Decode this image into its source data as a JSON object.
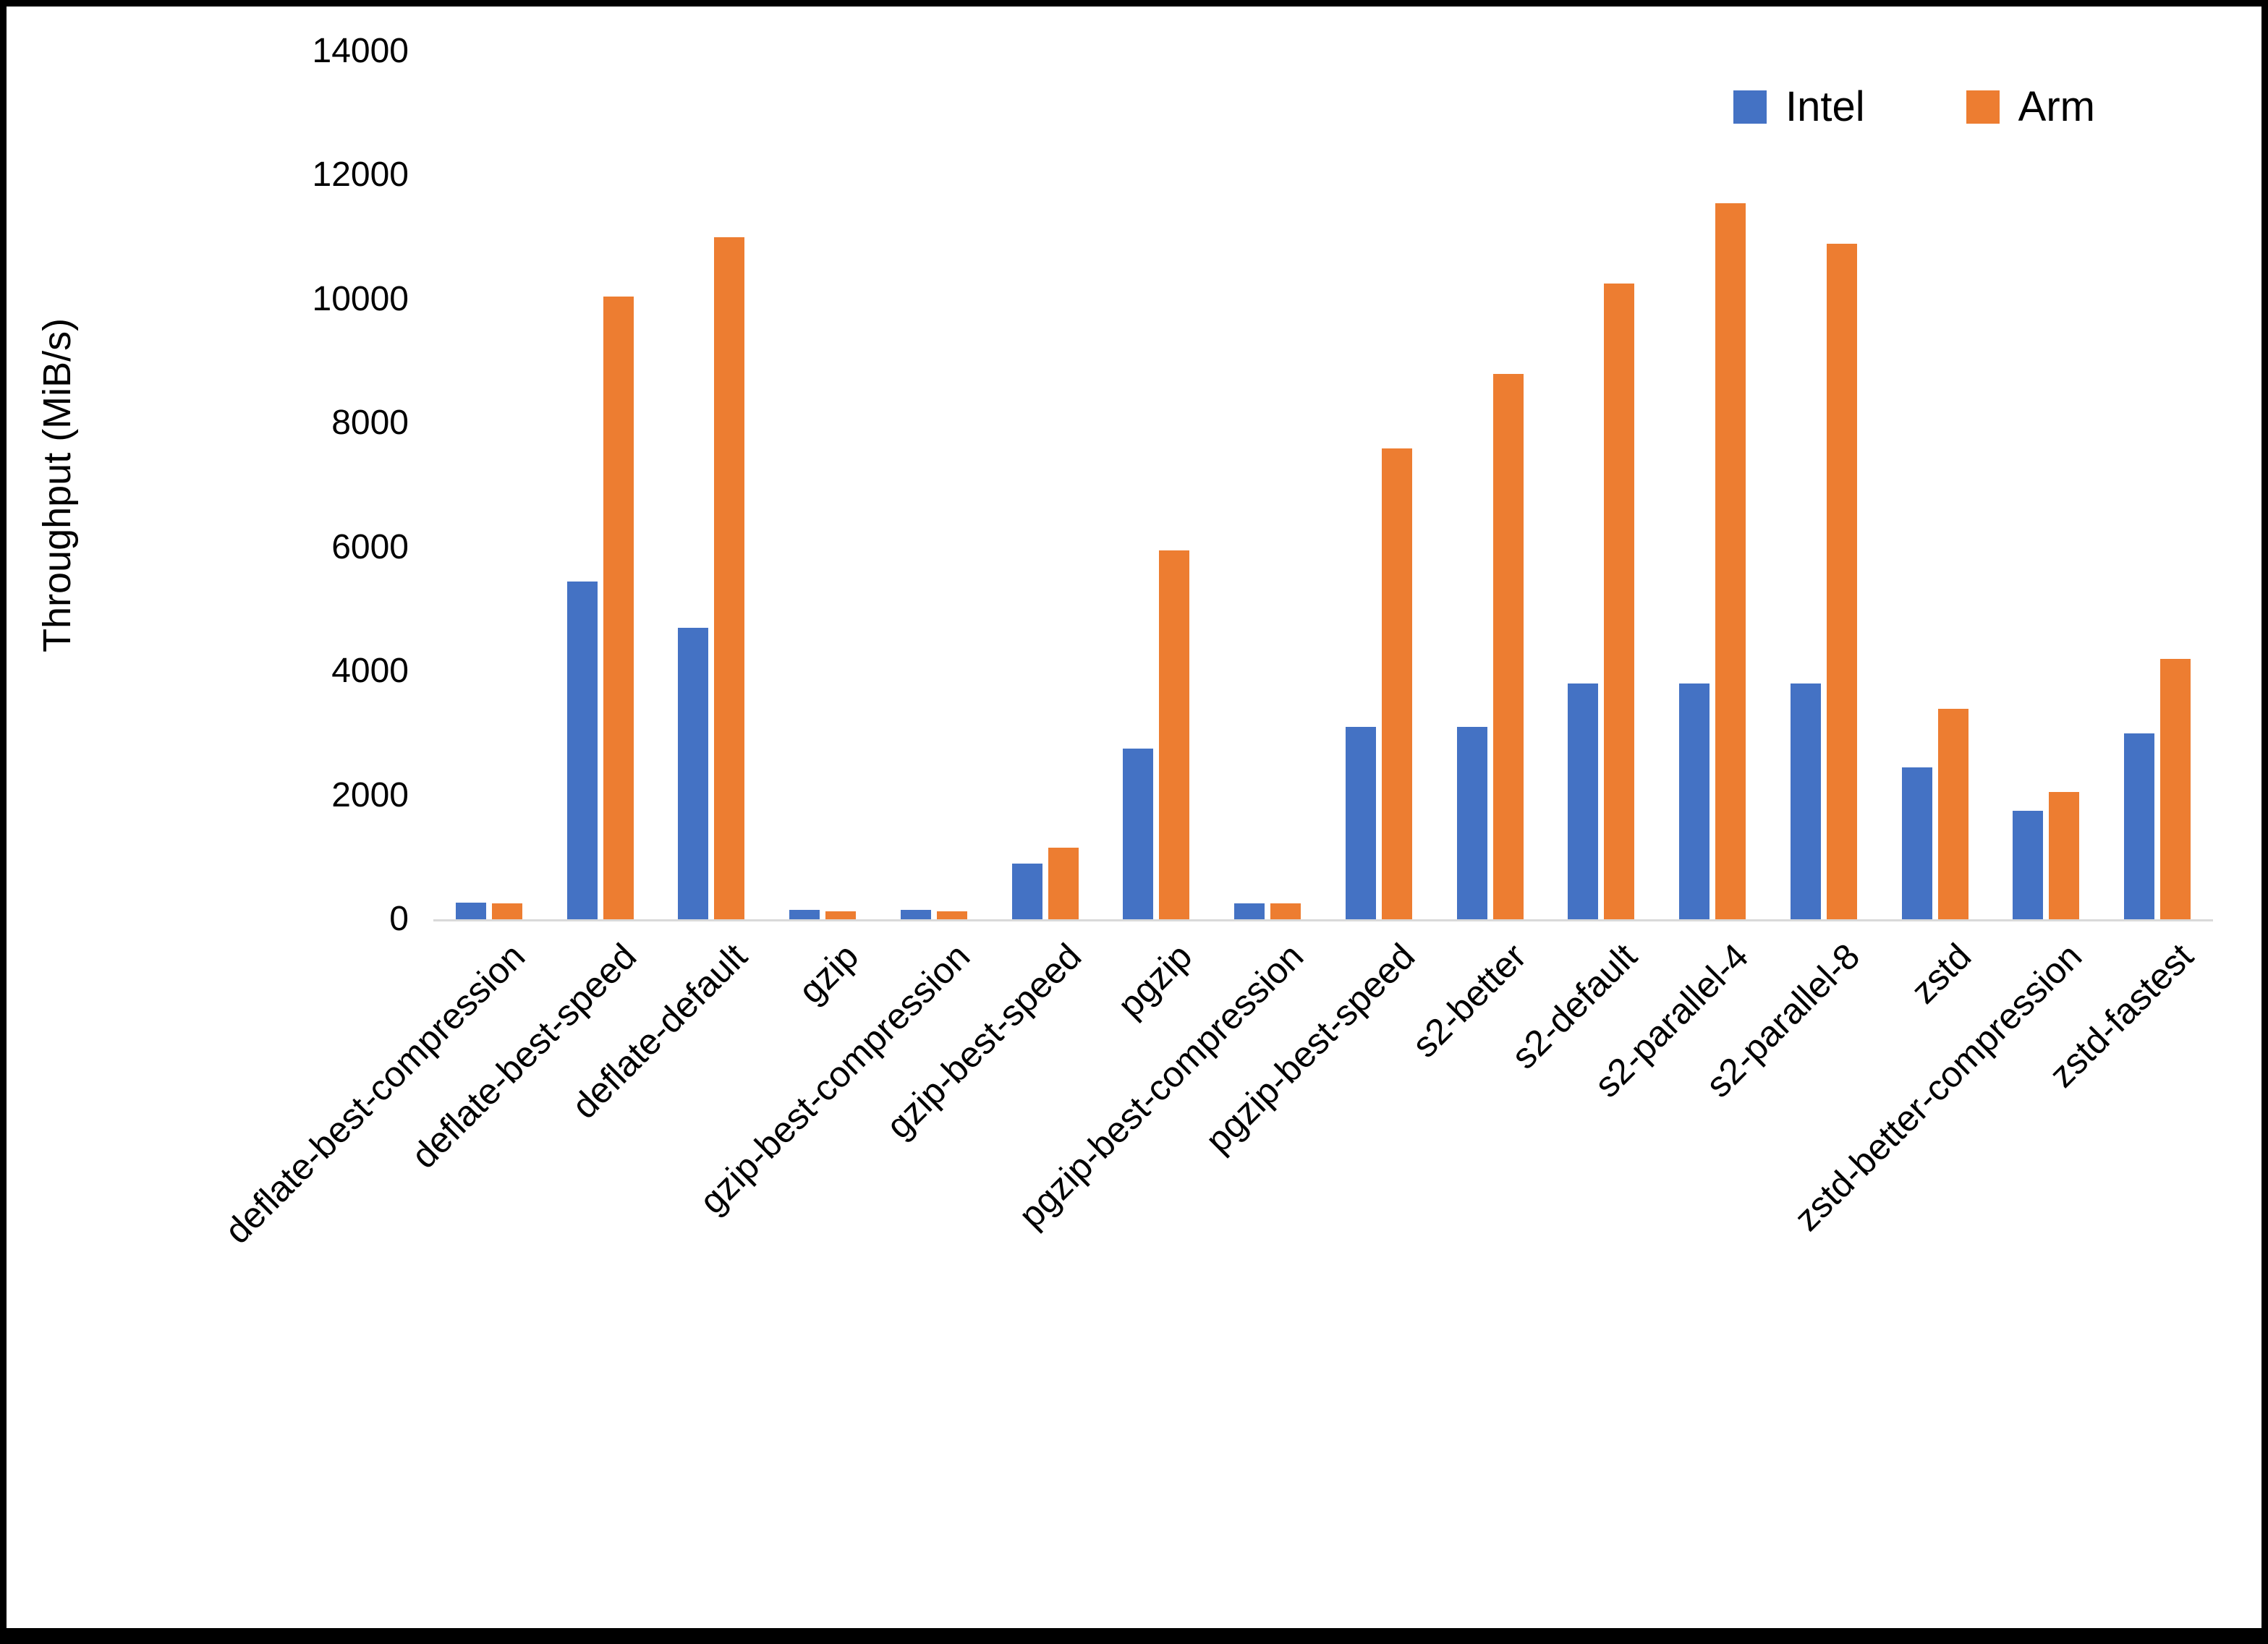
{
  "chart_data": {
    "type": "bar",
    "title": "",
    "xlabel": "",
    "ylabel": "Throughput (MiB/s)",
    "ylim": [
      0,
      14000
    ],
    "ytick_step": 2000,
    "grid": false,
    "legend_position": "top-right",
    "categories": [
      "deflate-best-compression",
      "deflate-best-speed",
      "deflate-default",
      "gzip",
      "gzip-best-compression",
      "gzip-best-speed",
      "pgzip",
      "pgzip-best-compression",
      "pgzip-best-speed",
      "s2-better",
      "s2-default",
      "s2-parallel-4",
      "s2-parallel-8",
      "zstd",
      "zstd-better-compression",
      "zstd-fastest"
    ],
    "series": [
      {
        "name": "Intel",
        "color": "#4472C4",
        "values": [
          270,
          5450,
          4700,
          150,
          150,
          900,
          2750,
          260,
          3100,
          3100,
          3800,
          3800,
          3800,
          2450,
          1750,
          3000
        ]
      },
      {
        "name": "Arm",
        "color": "#ED7D31",
        "values": [
          260,
          10050,
          11000,
          130,
          130,
          1150,
          5950,
          260,
          7600,
          8800,
          10250,
          11550,
          10900,
          3400,
          2050,
          4200
        ]
      }
    ]
  }
}
